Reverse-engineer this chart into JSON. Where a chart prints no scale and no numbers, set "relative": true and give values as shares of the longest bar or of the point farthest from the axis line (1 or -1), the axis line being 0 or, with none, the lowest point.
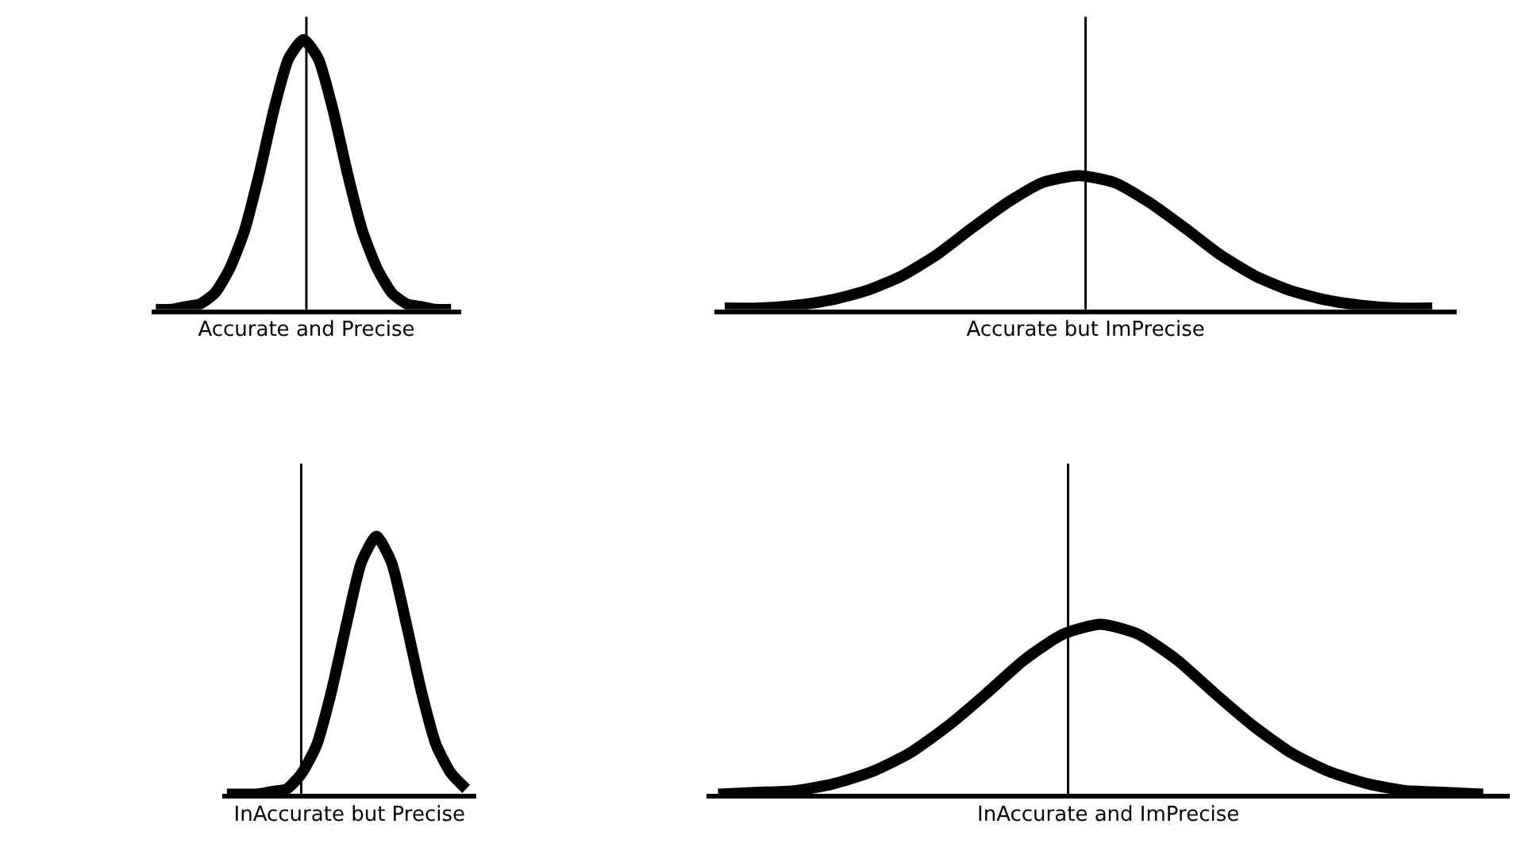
{
  "chart_data": [
    {
      "type": "line",
      "relative": true,
      "xlabel": "Accurate and Precise",
      "color": "#000000",
      "grid": false,
      "tick_labels": false,
      "marker": "none",
      "line_style": "solid",
      "categories": [
        null,
        null,
        null,
        null,
        null,
        null,
        null,
        null,
        null,
        null,
        null,
        null,
        null,
        null,
        null,
        null,
        null,
        null,
        null,
        null,
        null
      ],
      "values": [
        0,
        0,
        0.01,
        0.02,
        0.06,
        0.15,
        0.29,
        0.5,
        0.74,
        0.93,
        1,
        0.93,
        0.74,
        0.5,
        0.29,
        0.15,
        0.06,
        0.02,
        0.01,
        0,
        0
      ]
    },
    {
      "type": "line",
      "relative": true,
      "xlabel": "Accurate but ImPrecise",
      "color": "#000000",
      "grid": false,
      "tick_labels": false,
      "marker": "none",
      "line_style": "solid",
      "categories": [
        null,
        null,
        null,
        null,
        null,
        null,
        null,
        null,
        null,
        null,
        null,
        null,
        null,
        null,
        null,
        null,
        null,
        null,
        null,
        null,
        null
      ],
      "values": [
        0.01,
        0.01,
        0.03,
        0.07,
        0.14,
        0.25,
        0.41,
        0.61,
        0.8,
        0.95,
        1,
        0.95,
        0.8,
        0.61,
        0.41,
        0.25,
        0.14,
        0.07,
        0.03,
        0.01,
        0.01
      ]
    },
    {
      "type": "line",
      "relative": true,
      "xlabel": "InAccurate but Precise",
      "color": "#000000",
      "grid": false,
      "tick_labels": false,
      "marker": "none",
      "line_style": "solid",
      "categories": [
        null,
        null,
        null,
        null,
        null,
        null,
        null,
        null,
        null,
        null,
        null,
        null,
        null,
        null,
        null,
        null,
        null
      ],
      "values": [
        0,
        0,
        0,
        0.01,
        0.02,
        0.08,
        0.19,
        0.4,
        0.66,
        0.9,
        1,
        0.9,
        0.66,
        0.4,
        0.19,
        0.08,
        0.02
      ]
    },
    {
      "type": "line",
      "relative": true,
      "xlabel": "InAccurate and ImPrecise",
      "color": "#000000",
      "grid": false,
      "tick_labels": false,
      "marker": "none",
      "line_style": "solid",
      "categories": [
        null,
        null,
        null,
        null,
        null,
        null,
        null,
        null,
        null,
        null,
        null,
        null,
        null,
        null,
        null,
        null,
        null,
        null,
        null,
        null,
        null
      ],
      "values": [
        0,
        0.01,
        0.02,
        0.06,
        0.13,
        0.24,
        0.4,
        0.59,
        0.79,
        0.94,
        1,
        0.94,
        0.79,
        0.59,
        0.4,
        0.24,
        0.13,
        0.06,
        0.02,
        0.01,
        0
      ]
    }
  ]
}
